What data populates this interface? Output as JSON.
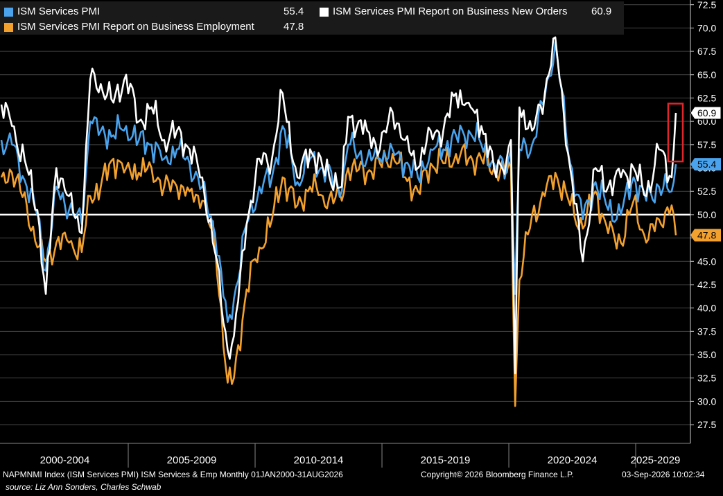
{
  "chart_data": {
    "type": "line",
    "ylim": [
      25.5,
      73
    ],
    "yticks": [
      27.5,
      30.0,
      32.5,
      35.0,
      37.5,
      40.0,
      42.5,
      45.0,
      47.5,
      50.0,
      52.5,
      55.0,
      57.5,
      60.0,
      62.5,
      65.0,
      67.5,
      70.0,
      72.5
    ],
    "tick_labels": [
      "27.5",
      "30.0",
      "32.5",
      "35.0",
      "37.5",
      "40.0",
      "42.5",
      "45.0",
      "47.5",
      "50.0",
      "52.5",
      "55.0",
      "57.5",
      "60.0",
      "62.5",
      "65.0",
      "67.5",
      "70.0",
      "72.5"
    ],
    "reference_line": 50.0,
    "x_range": [
      "2000-01",
      "2026-08"
    ],
    "period_labels": [
      "2000-2004",
      "2005-2009",
      "2010-2014",
      "2015-2019",
      "2020-2024",
      "2025-2029"
    ],
    "colors": {
      "pmi": "#4aa3ec",
      "employment": "#f3a12e",
      "new_orders": "#ffffff",
      "highlight_box": "#e0252b",
      "grid": "#444444"
    },
    "series": [
      {
        "key": "new_orders",
        "name": "ISM Services PMI Report on Business New Orders",
        "last_value": "60.9",
        "anchors": [
          [
            "2000-01",
            61.8
          ],
          [
            "2000-06",
            59.5
          ],
          [
            "2001-01",
            55.0
          ],
          [
            "2001-06",
            50.5
          ],
          [
            "2001-10",
            41.5
          ],
          [
            "2002-03",
            55.0
          ],
          [
            "2002-09",
            52.0
          ],
          [
            "2003-03",
            48.0
          ],
          [
            "2003-07",
            64.5
          ],
          [
            "2003-12",
            64.0
          ],
          [
            "2004-06",
            62.0
          ],
          [
            "2004-12",
            65.0
          ],
          [
            "2005-06",
            60.0
          ],
          [
            "2005-12",
            61.5
          ],
          [
            "2006-06",
            58.0
          ],
          [
            "2006-12",
            59.0
          ],
          [
            "2007-06",
            57.0
          ],
          [
            "2007-12",
            54.0
          ],
          [
            "2008-06",
            46.0
          ],
          [
            "2008-12",
            35.5
          ],
          [
            "2009-03",
            37.0
          ],
          [
            "2009-09",
            49.0
          ],
          [
            "2010-03",
            56.0
          ],
          [
            "2010-09",
            56.0
          ],
          [
            "2011-02",
            63.0
          ],
          [
            "2011-09",
            54.0
          ],
          [
            "2012-03",
            57.0
          ],
          [
            "2012-09",
            55.0
          ],
          [
            "2013-06",
            53.0
          ],
          [
            "2013-09",
            60.5
          ],
          [
            "2014-06",
            59.0
          ],
          [
            "2014-12",
            57.0
          ],
          [
            "2015-06",
            61.0
          ],
          [
            "2015-12",
            58.0
          ],
          [
            "2016-06",
            55.0
          ],
          [
            "2016-12",
            59.0
          ],
          [
            "2017-06",
            59.0
          ],
          [
            "2017-12",
            63.0
          ],
          [
            "2018-06",
            62.0
          ],
          [
            "2018-12",
            59.5
          ],
          [
            "2019-06",
            55.0
          ],
          [
            "2019-12",
            56.0
          ],
          [
            "2020-02",
            58.0
          ],
          [
            "2020-04",
            33.0
          ],
          [
            "2020-06",
            61.5
          ],
          [
            "2020-12",
            59.0
          ],
          [
            "2021-06",
            63.0
          ],
          [
            "2021-11",
            69.0
          ],
          [
            "2022-06",
            55.0
          ],
          [
            "2022-12",
            45.0
          ],
          [
            "2023-06",
            55.0
          ],
          [
            "2023-12",
            53.0
          ],
          [
            "2024-06",
            54.0
          ],
          [
            "2024-12",
            55.0
          ],
          [
            "2025-06",
            52.0
          ],
          [
            "2025-12",
            57.0
          ],
          [
            "2026-06",
            54.0
          ],
          [
            "2026-07",
            57.0
          ],
          [
            "2026-08",
            60.9
          ]
        ]
      },
      {
        "key": "pmi",
        "name": "ISM Services PMI",
        "last_value": "55.4",
        "anchors": [
          [
            "2000-01",
            58.0
          ],
          [
            "2000-06",
            57.5
          ],
          [
            "2001-01",
            53.0
          ],
          [
            "2001-06",
            50.0
          ],
          [
            "2001-10",
            44.0
          ],
          [
            "2002-03",
            53.0
          ],
          [
            "2002-09",
            50.5
          ],
          [
            "2003-03",
            49.0
          ],
          [
            "2003-07",
            60.0
          ],
          [
            "2003-12",
            59.0
          ],
          [
            "2004-06",
            58.5
          ],
          [
            "2004-12",
            59.5
          ],
          [
            "2005-06",
            58.0
          ],
          [
            "2005-12",
            57.5
          ],
          [
            "2006-06",
            56.0
          ],
          [
            "2006-12",
            57.0
          ],
          [
            "2007-06",
            55.5
          ],
          [
            "2007-12",
            53.0
          ],
          [
            "2008-06",
            48.0
          ],
          [
            "2008-12",
            38.5
          ],
          [
            "2009-03",
            41.0
          ],
          [
            "2009-09",
            49.0
          ],
          [
            "2010-03",
            53.0
          ],
          [
            "2010-09",
            54.0
          ],
          [
            "2011-02",
            59.5
          ],
          [
            "2011-09",
            53.5
          ],
          [
            "2012-03",
            56.0
          ],
          [
            "2012-09",
            55.0
          ],
          [
            "2013-06",
            52.5
          ],
          [
            "2013-09",
            57.5
          ],
          [
            "2014-06",
            56.0
          ],
          [
            "2014-12",
            56.0
          ],
          [
            "2015-06",
            57.0
          ],
          [
            "2015-12",
            55.5
          ],
          [
            "2016-06",
            54.0
          ],
          [
            "2016-12",
            57.0
          ],
          [
            "2017-06",
            57.0
          ],
          [
            "2017-12",
            58.5
          ],
          [
            "2018-06",
            59.0
          ],
          [
            "2018-12",
            57.5
          ],
          [
            "2019-06",
            55.5
          ],
          [
            "2019-12",
            55.0
          ],
          [
            "2020-02",
            57.0
          ],
          [
            "2020-04",
            41.5
          ],
          [
            "2020-06",
            57.0
          ],
          [
            "2020-12",
            57.5
          ],
          [
            "2021-06",
            62.5
          ],
          [
            "2021-11",
            68.5
          ],
          [
            "2022-06",
            55.5
          ],
          [
            "2022-12",
            49.5
          ],
          [
            "2023-06",
            53.5
          ],
          [
            "2023-12",
            50.5
          ],
          [
            "2024-06",
            50.0
          ],
          [
            "2024-12",
            54.0
          ],
          [
            "2025-06",
            51.5
          ],
          [
            "2025-12",
            53.0
          ],
          [
            "2026-06",
            52.5
          ],
          [
            "2026-07",
            53.5
          ],
          [
            "2026-08",
            55.4
          ]
        ]
      },
      {
        "key": "employment",
        "name": "ISM Services PMI Report on Business Employment",
        "last_value": "47.8",
        "anchors": [
          [
            "2000-01",
            54.0
          ],
          [
            "2000-06",
            54.5
          ],
          [
            "2001-01",
            51.0
          ],
          [
            "2001-06",
            46.5
          ],
          [
            "2001-10",
            45.0
          ],
          [
            "2002-03",
            47.0
          ],
          [
            "2002-09",
            47.0
          ],
          [
            "2003-03",
            46.0
          ],
          [
            "2003-07",
            52.0
          ],
          [
            "2003-12",
            53.0
          ],
          [
            "2004-06",
            56.0
          ],
          [
            "2004-12",
            55.0
          ],
          [
            "2005-06",
            54.5
          ],
          [
            "2005-12",
            55.0
          ],
          [
            "2006-06",
            53.0
          ],
          [
            "2006-12",
            53.0
          ],
          [
            "2007-06",
            52.5
          ],
          [
            "2007-12",
            51.5
          ],
          [
            "2008-06",
            47.0
          ],
          [
            "2008-12",
            32.0
          ],
          [
            "2009-03",
            32.5
          ],
          [
            "2009-09",
            42.0
          ],
          [
            "2010-03",
            46.5
          ],
          [
            "2010-09",
            49.5
          ],
          [
            "2011-02",
            54.0
          ],
          [
            "2011-09",
            51.0
          ],
          [
            "2012-03",
            53.0
          ],
          [
            "2012-09",
            52.0
          ],
          [
            "2013-06",
            51.5
          ],
          [
            "2013-09",
            55.0
          ],
          [
            "2014-06",
            54.5
          ],
          [
            "2014-12",
            55.5
          ],
          [
            "2015-06",
            56.5
          ],
          [
            "2015-12",
            54.0
          ],
          [
            "2016-06",
            52.5
          ],
          [
            "2016-12",
            55.5
          ],
          [
            "2017-06",
            55.5
          ],
          [
            "2017-12",
            56.5
          ],
          [
            "2018-06",
            56.0
          ],
          [
            "2018-12",
            56.0
          ],
          [
            "2019-06",
            55.0
          ],
          [
            "2019-12",
            54.5
          ],
          [
            "2020-02",
            55.0
          ],
          [
            "2020-04",
            29.5
          ],
          [
            "2020-06",
            43.0
          ],
          [
            "2020-12",
            50.0
          ],
          [
            "2021-06",
            52.0
          ],
          [
            "2021-11",
            54.5
          ],
          [
            "2022-06",
            51.0
          ],
          [
            "2022-12",
            48.5
          ],
          [
            "2023-06",
            52.5
          ],
          [
            "2023-12",
            48.0
          ],
          [
            "2024-06",
            47.0
          ],
          [
            "2024-12",
            51.5
          ],
          [
            "2025-06",
            47.0
          ],
          [
            "2025-12",
            49.5
          ],
          [
            "2026-06",
            51.0
          ],
          [
            "2026-07",
            50.0
          ],
          [
            "2026-08",
            47.8
          ]
        ]
      }
    ],
    "highlight": {
      "from": "2026-07",
      "to": "2026-08",
      "y_min": 55.7,
      "y_max": 61.9
    }
  },
  "footer": {
    "description": "NAPMNMI Index (ISM Services PMI) ISM Services & Emp Monthly 01JAN2000-31AUG2026",
    "copyright": "Copyright© 2026 Bloomberg Finance L.P.",
    "timestamp": "03-Sep-2026 10:02:34",
    "source": "source: Liz Ann Sonders, Charles Schwab"
  }
}
